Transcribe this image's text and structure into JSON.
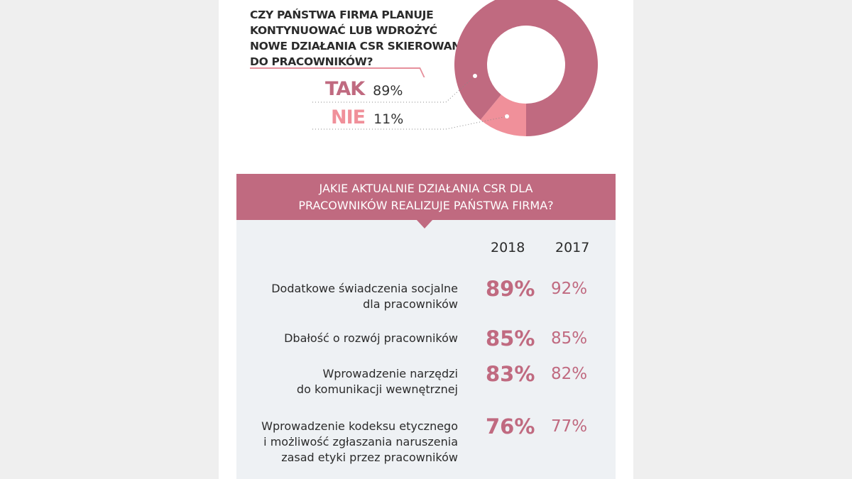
{
  "chart_data": [
    {
      "type": "pie",
      "title": "CZY PAŃSTWA FIRMA PLANUJE KONTYNUOWAĆ LUB WDROŻYĆ NOWE DZIAŁANIA CSR SKIEROWANE DO PRACOWNIKÓW?",
      "title_lines": [
        "CZY PAŃSTWA FIRMA PLANUJE",
        "KONTYNUOWAĆ LUB WDROŻYĆ",
        "NOWE DZIAŁANIA CSR SKIEROWANE",
        "DO PRACOWNIKÓW?"
      ],
      "donut": true,
      "slices": [
        {
          "label": "TAK",
          "value": 89,
          "value_label": "89%",
          "color": "#c06a80"
        },
        {
          "label": "NIE",
          "value": 11,
          "value_label": "11%",
          "color": "#f0909a"
        }
      ]
    },
    {
      "type": "table",
      "title": "JAKIE AKTUALNIE DZIAŁANIA CSR DLA PRACOWNIKÓW REALIZUJE PAŃSTWA FIRMA?",
      "title_lines": [
        "JAKIE AKTUALNIE DZIAŁANIA CSR DLA",
        "PRACOWNIKÓW REALIZUJE PAŃSTWA FIRMA?"
      ],
      "columns": [
        "2018",
        "2017"
      ],
      "rows": [
        {
          "lines": [
            "Dodatkowe świadczenia socjalne",
            "dla pracowników"
          ],
          "v2018": "89%",
          "v2017": "92%"
        },
        {
          "lines": [
            "Dbałość o rozwój pracowników"
          ],
          "v2018": "85%",
          "v2017": "85%"
        },
        {
          "lines": [
            "Wprowadzenie narzędzi",
            "do komunikacji wewnętrznej"
          ],
          "v2018": "83%",
          "v2017": "82%"
        },
        {
          "lines": [
            "Wprowadzenie kodeksu etycznego",
            "i możliwość zgłaszania naruszenia",
            "zasad etyki przez pracowników"
          ],
          "v2018": "76%",
          "v2017": "77%"
        }
      ],
      "accent_color": "#c06a80"
    }
  ]
}
